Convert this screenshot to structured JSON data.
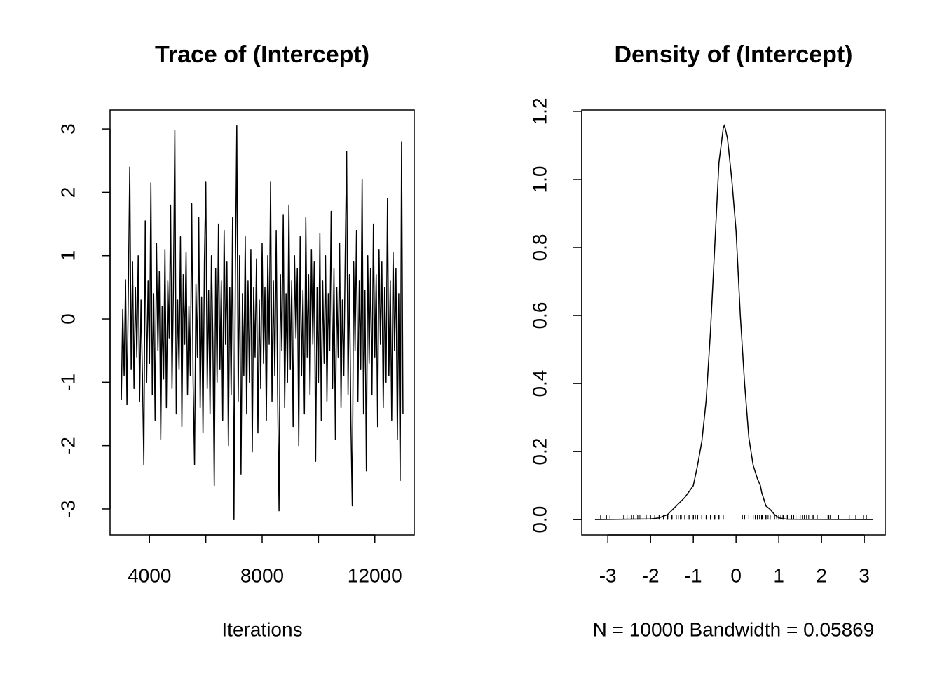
{
  "chart_data": [
    {
      "type": "line",
      "title": "Trace of (Intercept)",
      "xlabel": "Iterations",
      "color": "#000000",
      "xlim": [
        2600,
        13400
      ],
      "ylim": [
        -3.41,
        3.3
      ],
      "xticks": [
        4000,
        {
          "value": 6000,
          "label": null
        },
        8000,
        {
          "value": 10000,
          "label": null
        },
        12000
      ],
      "yticks": [
        -3,
        -2,
        -1,
        0,
        1,
        2,
        3
      ],
      "x": [
        3000,
        3050,
        3100,
        3150,
        3200,
        3250,
        3300,
        3350,
        3400,
        3450,
        3500,
        3550,
        3600,
        3650,
        3700,
        3750,
        3800,
        3850,
        3900,
        3950,
        4000,
        4050,
        4100,
        4150,
        4200,
        4250,
        4300,
        4350,
        4400,
        4450,
        4500,
        4550,
        4600,
        4650,
        4700,
        4750,
        4800,
        4850,
        4900,
        4950,
        5000,
        5050,
        5100,
        5150,
        5200,
        5250,
        5300,
        5350,
        5400,
        5450,
        5500,
        5550,
        5600,
        5650,
        5700,
        5750,
        5800,
        5850,
        5900,
        5950,
        6000,
        6050,
        6100,
        6150,
        6200,
        6250,
        6300,
        6350,
        6400,
        6450,
        6500,
        6550,
        6600,
        6650,
        6700,
        6750,
        6800,
        6850,
        6900,
        6950,
        7000,
        7050,
        7100,
        7150,
        7200,
        7250,
        7300,
        7350,
        7400,
        7450,
        7500,
        7550,
        7600,
        7650,
        7700,
        7750,
        7800,
        7850,
        7900,
        7950,
        8000,
        8050,
        8100,
        8150,
        8200,
        8250,
        8300,
        8350,
        8400,
        8450,
        8500,
        8550,
        8600,
        8650,
        8700,
        8750,
        8800,
        8850,
        8900,
        8950,
        9000,
        9050,
        9100,
        9150,
        9200,
        9250,
        9300,
        9350,
        9400,
        9450,
        9500,
        9550,
        9600,
        9650,
        9700,
        9750,
        9800,
        9850,
        9900,
        9950,
        10000,
        10050,
        10100,
        10150,
        10200,
        10250,
        10300,
        10350,
        10400,
        10450,
        10500,
        10550,
        10600,
        10650,
        10700,
        10750,
        10800,
        10850,
        10900,
        10950,
        11000,
        11050,
        11100,
        11150,
        11200,
        11250,
        11300,
        11350,
        11400,
        11450,
        11500,
        11550,
        11600,
        11650,
        11700,
        11750,
        11800,
        11850,
        11900,
        11950,
        12000,
        12050,
        12100,
        12150,
        12200,
        12250,
        12300,
        12350,
        12400,
        12450,
        12500,
        12550,
        12600,
        12650,
        12700,
        12750,
        12800,
        12850,
        12900,
        12950,
        13000
      ],
      "values": [
        -1.28,
        0.15,
        -0.9,
        0.62,
        -1.35,
        0.45,
        2.4,
        -0.8,
        0.9,
        -1.1,
        0.5,
        -0.6,
        1.0,
        -1.3,
        0.3,
        -0.9,
        -2.3,
        1.55,
        -1.0,
        0.6,
        -0.7,
        2.15,
        -1.2,
        0.4,
        -1.6,
        1.2,
        -0.5,
        0.75,
        -1.9,
        0.2,
        -0.95,
        1.1,
        -1.4,
        0.6,
        -0.3,
        1.8,
        -1.1,
        0.5,
        2.98,
        -1.5,
        0.3,
        -0.8,
        1.3,
        -1.7,
        0.7,
        -0.4,
        1.05,
        -1.2,
        0.2,
        -0.9,
        1.82,
        -1.0,
        -2.3,
        0.55,
        -0.6,
        1.6,
        -1.4,
        0.35,
        -1.8,
        0.9,
        2.17,
        -1.1,
        0.45,
        -1.5,
        1.0,
        -0.3,
        -2.63,
        0.8,
        -1.0,
        1.5,
        -0.8,
        0.6,
        -1.6,
        1.4,
        -0.4,
        0.9,
        -2.0,
        0.5,
        -1.2,
        1.6,
        -3.17,
        0.7,
        3.05,
        -1.3,
        1.0,
        -2.45,
        0.4,
        -0.9,
        1.3,
        -1.5,
        0.6,
        -1.0,
        1.1,
        -2.1,
        0.5,
        -0.6,
        0.95,
        -1.8,
        0.3,
        -1.1,
        1.2,
        -0.7,
        0.5,
        -1.6,
        1.0,
        -0.4,
        2.17,
        -1.3,
        0.6,
        -0.9,
        1.4,
        -1.2,
        -3.03,
        0.7,
        -0.5,
        1.65,
        -1.4,
        0.4,
        -1.0,
        1.8,
        -0.8,
        0.6,
        -1.7,
        1.0,
        -0.3,
        0.8,
        -2.0,
        1.3,
        -0.9,
        0.45,
        -1.5,
        1.6,
        -0.6,
        0.7,
        -1.2,
        1.1,
        -0.4,
        0.9,
        -2.25,
        0.5,
        -1.0,
        1.35,
        -1.6,
        0.6,
        -0.7,
        1.0,
        -1.3,
        0.4,
        -0.5,
        1.7,
        -1.1,
        0.8,
        -1.9,
        0.5,
        -0.6,
        1.2,
        -1.4,
        0.3,
        -0.9,
        1.0,
        2.65,
        -1.2,
        0.7,
        -1.6,
        -2.95,
        0.9,
        -0.5,
        1.4,
        -1.3,
        0.6,
        -0.8,
        2.2,
        -1.5,
        0.45,
        -2.4,
        1.0,
        -0.7,
        0.8,
        -1.2,
        1.5,
        -0.6,
        0.7,
        -1.7,
        1.1,
        -0.4,
        0.9,
        -1.4,
        0.5,
        -1.0,
        1.9,
        -0.9,
        0.6,
        -1.6,
        1.05,
        -0.5,
        0.8,
        -1.9,
        0.4,
        -2.55,
        2.8,
        -1.5
      ]
    },
    {
      "type": "density",
      "title": "Density of (Intercept)",
      "xlabel": "N = 10000   Bandwidth = 0.05869",
      "color": "#000000",
      "xlim": [
        -3.61,
        3.49
      ],
      "ylim": [
        -0.045,
        1.204
      ],
      "xticks": [
        -3,
        -2,
        -1,
        0,
        1,
        2,
        3
      ],
      "yticks": [
        {
          "value": 0,
          "label": "0.0"
        },
        0.2,
        0.4,
        0.6,
        0.8,
        {
          "value": 1,
          "label": "1.0"
        },
        1.2
      ],
      "rug": true,
      "x": [
        -3.3,
        -2,
        -1.8,
        -1.6,
        -1.4,
        -1.2,
        -1.0,
        -0.9,
        -0.8,
        -0.7,
        -0.6,
        -0.5,
        -0.4,
        -0.3,
        -0.27,
        -0.2,
        -0.1,
        0,
        0.1,
        0.2,
        0.3,
        0.4,
        0.5,
        0.57,
        0.6,
        0.7,
        0.8,
        0.9,
        1.0,
        1.2,
        3.2
      ],
      "values": [
        0,
        0.002,
        0.005,
        0.015,
        0.04,
        0.065,
        0.1,
        0.16,
        0.23,
        0.35,
        0.55,
        0.8,
        1.05,
        1.15,
        1.16,
        1.12,
        1.0,
        0.85,
        0.6,
        0.4,
        0.24,
        0.16,
        0.12,
        0.1,
        0.08,
        0.04,
        0.03,
        0.015,
        0.005,
        0.001,
        0
      ]
    }
  ]
}
